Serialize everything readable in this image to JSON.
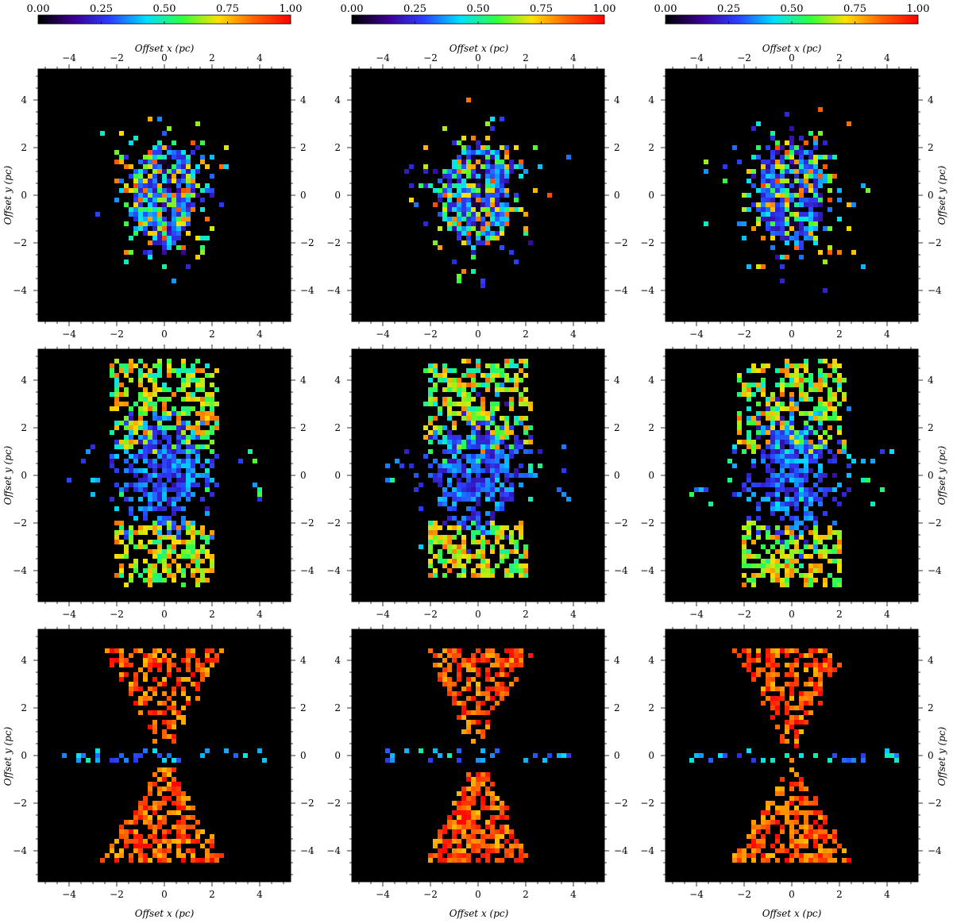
{
  "colorbar": {
    "tick_labels": [
      "0.00",
      "0.25",
      "0.50",
      "0.75",
      "1.00"
    ],
    "range": [
      0,
      1
    ],
    "colormap": [
      "#000000",
      "#3b0090",
      "#2a40ff",
      "#00e0ff",
      "#30ff40",
      "#ffe000",
      "#ff6000",
      "#ff0000"
    ]
  },
  "axis_labels": {
    "x": "Offset x (pc)",
    "y": "Offset y (pc)"
  },
  "chart_data": [
    {
      "type": "heatmap",
      "panel": "row1-col1",
      "xlim": [
        -5.3,
        5.3
      ],
      "ylim": [
        -5.3,
        5.3
      ],
      "xticks": [
        "−4",
        "−2",
        "0",
        "2",
        "4"
      ],
      "yticks": [
        "−4",
        "−2",
        "0",
        "2",
        "4"
      ],
      "morphology": "compact-core",
      "core": {
        "rx": 1.4,
        "ry": 2.2,
        "value": 0.28
      },
      "scatter": {
        "value_range": [
          0.15,
          0.9
        ],
        "extent": 3.6
      }
    },
    {
      "type": "heatmap",
      "panel": "row1-col2",
      "xlim": [
        -5.3,
        5.3
      ],
      "ylim": [
        -5.3,
        5.3
      ],
      "xticks": [
        "−4",
        "−2",
        "0",
        "2",
        "4"
      ],
      "yticks": [
        "−4",
        "−2",
        "0",
        "2",
        "4"
      ],
      "morphology": "compact-core",
      "core": {
        "rx": 1.4,
        "ry": 2.2,
        "value": 0.28
      },
      "scatter": {
        "value_range": [
          0.15,
          0.9
        ],
        "extent": 4.2
      }
    },
    {
      "type": "heatmap",
      "panel": "row1-col3",
      "xlim": [
        -5.3,
        5.3
      ],
      "ylim": [
        -5.3,
        5.3
      ],
      "xticks": [
        "−4",
        "−2",
        "0",
        "2",
        "4"
      ],
      "yticks": [
        "−4",
        "−2",
        "0",
        "2",
        "4"
      ],
      "morphology": "compact-core",
      "core": {
        "rx": 1.4,
        "ry": 2.2,
        "value": 0.28
      },
      "scatter": {
        "value_range": [
          0.15,
          0.9
        ],
        "extent": 4.5
      }
    },
    {
      "type": "heatmap",
      "panel": "row2-col1",
      "xlim": [
        -5.3,
        5.3
      ],
      "ylim": [
        -5.3,
        5.3
      ],
      "xticks": [
        "−4",
        "−2",
        "0",
        "2",
        "4"
      ],
      "yticks": [
        "−4",
        "−2",
        "0",
        "2",
        "4"
      ],
      "morphology": "bipolar-lobes",
      "upper_lobe": {
        "y_range": [
          1.0,
          4.8
        ],
        "value_range": [
          0.45,
          0.85
        ]
      },
      "core": {
        "y_range": [
          -1.0,
          1.2
        ],
        "value": 0.3
      },
      "lower_lobe": {
        "y_range": [
          -4.6,
          -2.0
        ],
        "value_range": [
          0.5,
          0.85
        ]
      }
    },
    {
      "type": "heatmap",
      "panel": "row2-col2",
      "xlim": [
        -5.3,
        5.3
      ],
      "ylim": [
        -5.3,
        5.3
      ],
      "xticks": [
        "−4",
        "−2",
        "0",
        "2",
        "4"
      ],
      "yticks": [
        "−4",
        "−2",
        "0",
        "2",
        "4"
      ],
      "morphology": "bipolar-lobes",
      "upper_lobe": {
        "y_range": [
          1.0,
          4.8
        ],
        "value_range": [
          0.45,
          0.85
        ]
      },
      "core": {
        "y_range": [
          -1.0,
          1.2
        ],
        "value": 0.3
      },
      "lower_lobe": {
        "y_range": [
          -4.3,
          -2.0
        ],
        "value_range": [
          0.5,
          0.85
        ]
      }
    },
    {
      "type": "heatmap",
      "panel": "row2-col3",
      "xlim": [
        -5.3,
        5.3
      ],
      "ylim": [
        -5.3,
        5.3
      ],
      "xticks": [
        "−4",
        "−2",
        "0",
        "2",
        "4"
      ],
      "yticks": [
        "−4",
        "−2",
        "0",
        "2",
        "4"
      ],
      "morphology": "bipolar-lobes",
      "upper_lobe": {
        "y_range": [
          1.0,
          4.8
        ],
        "value_range": [
          0.45,
          0.85
        ]
      },
      "core": {
        "y_range": [
          -1.0,
          1.2
        ],
        "value": 0.3
      },
      "lower_lobe": {
        "y_range": [
          -4.6,
          -2.0
        ],
        "value_range": [
          0.5,
          0.85
        ]
      }
    },
    {
      "type": "heatmap",
      "panel": "row3-col1",
      "xlim": [
        -5.3,
        5.3
      ],
      "ylim": [
        -5.3,
        5.3
      ],
      "xticks": [
        "−4",
        "−2",
        "0",
        "2",
        "4"
      ],
      "yticks": [
        "−4",
        "−2",
        "0",
        "2",
        "4"
      ],
      "morphology": "double-cone",
      "cones": {
        "apex_y": 0.0,
        "half_width_at_4": 2.3,
        "value_range": [
          0.75,
          1.0
        ]
      },
      "equatorial_band": {
        "value_range": [
          0.25,
          0.5
        ]
      }
    },
    {
      "type": "heatmap",
      "panel": "row3-col2",
      "xlim": [
        -5.3,
        5.3
      ],
      "ylim": [
        -5.3,
        5.3
      ],
      "xticks": [
        "−4",
        "−2",
        "0",
        "2",
        "4"
      ],
      "yticks": [
        "−4",
        "−2",
        "0",
        "2",
        "4"
      ],
      "morphology": "double-cone",
      "cones": {
        "apex_y": 0.0,
        "half_width_at_4": 2.0,
        "value_range": [
          0.75,
          1.0
        ]
      },
      "equatorial_band": {
        "value_range": [
          0.25,
          0.5
        ]
      }
    },
    {
      "type": "heatmap",
      "panel": "row3-col3",
      "xlim": [
        -5.3,
        5.3
      ],
      "ylim": [
        -5.3,
        5.3
      ],
      "xticks": [
        "−4",
        "−2",
        "0",
        "2",
        "4"
      ],
      "yticks": [
        "−4",
        "−2",
        "0",
        "2",
        "4"
      ],
      "morphology": "double-cone",
      "cones": {
        "apex_y": 0.0,
        "half_width_at_4": 2.2,
        "value_range": [
          0.75,
          1.0
        ]
      },
      "equatorial_band": {
        "value_range": [
          0.25,
          0.5
        ]
      }
    }
  ]
}
